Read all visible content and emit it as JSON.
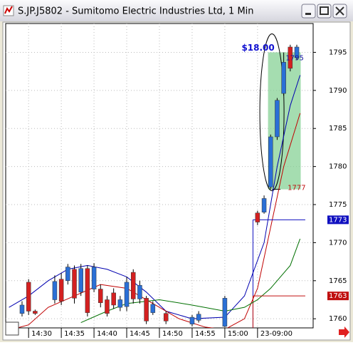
{
  "window": {
    "title": "S.JP.J5802 - Sumitomo Electric Industries Ltd, 1 Min"
  },
  "chart_data": {
    "type": "candlestick",
    "x": [
      -1,
      0,
      1,
      4,
      5,
      6,
      7,
      8,
      9,
      10,
      11,
      12,
      13,
      14,
      15,
      16,
      17,
      18,
      19,
      21,
      25,
      26,
      30,
      35,
      36,
      37,
      38,
      39,
      40,
      41
    ],
    "open": [
      1760.7,
      1764.8,
      1761,
      1762.5,
      1765.2,
      1765,
      1766.5,
      1763.5,
      1766.6,
      1763.9,
      1763.9,
      1762.5,
      1763.4,
      1761.5,
      1761.6,
      1766.1,
      1762.6,
      1762.7,
      1760.8,
      1760.7,
      1759.3,
      1759.8,
      1759,
      1773.9,
      1774,
      1777.3,
      1783.9,
      1789.6,
      1795.7,
      1794.3
    ],
    "high": [
      1762.3,
      1765.2,
      1761.2,
      1765.7,
      1766,
      1767.2,
      1767,
      1767.2,
      1767,
      1767.3,
      1764.5,
      1763,
      1764,
      1763,
      1765.5,
      1766.5,
      1765,
      1763,
      1762.3,
      1761,
      1760.5,
      1761,
      1763,
      1774.2,
      1776.2,
      1784.2,
      1789,
      1795,
      1796,
      1796
    ],
    "low": [
      1760.3,
      1760.5,
      1760.5,
      1762,
      1761.8,
      1764.5,
      1762,
      1763,
      1760.3,
      1763.5,
      1761.5,
      1760.3,
      1761.3,
      1761,
      1761,
      1762,
      1762,
      1759.3,
      1760.5,
      1759.3,
      1759,
      1759.5,
      1758.9,
      1772.3,
      1773.8,
      1777,
      1783.5,
      1789.3,
      1792.5,
      1794
    ],
    "close": [
      1761.8,
      1761,
      1760.7,
      1764.9,
      1762.3,
      1766.8,
      1762.7,
      1766.6,
      1760.8,
      1766.8,
      1762.1,
      1760.7,
      1761.8,
      1762.5,
      1764.8,
      1762.6,
      1764.4,
      1759.7,
      1761.9,
      1759.7,
      1760.2,
      1760.6,
      1762.7,
      1772.7,
      1775.8,
      1783.9,
      1788.7,
      1793.7,
      1792.9,
      1795.7
    ],
    "up_color": "#2a6fd6",
    "down_color": "#d42020",
    "lines": [
      {
        "color": "#0000b0",
        "x": [
          -3,
          0,
          3,
          6,
          9,
          12,
          15,
          18,
          21,
          25,
          30,
          33,
          36,
          38,
          40,
          41.5
        ],
        "values": [
          1761.5,
          1763,
          1765,
          1766.5,
          1767,
          1766.5,
          1765.5,
          1763.5,
          1761,
          1760,
          1760.2,
          1763,
          1770,
          1780,
          1788,
          1792
        ]
      },
      {
        "color": "#c00000",
        "x": [
          -3,
          0,
          3,
          7,
          11,
          15,
          19,
          23,
          27,
          30,
          33,
          35,
          37,
          39,
          41.5
        ],
        "values": [
          1758.5,
          1759.2,
          1761.5,
          1763,
          1764.5,
          1764,
          1762,
          1760,
          1758.9,
          1758.6,
          1760,
          1764,
          1772,
          1780,
          1787
        ]
      },
      {
        "color": "#007000",
        "x": [
          8,
          12,
          15,
          20,
          25,
          30,
          33,
          35,
          37,
          40,
          41.5
        ],
        "values": [
          1759.5,
          1761,
          1762,
          1762.5,
          1761.8,
          1761,
          1761.5,
          1762.5,
          1764,
          1767,
          1770.5
        ]
      }
    ],
    "xlim": [
      -3.5,
      43.5
    ],
    "xticks": [
      {
        "value": 0,
        "label": "14:30"
      },
      {
        "value": 5,
        "label": "14:35"
      },
      {
        "value": 10,
        "label": "14:40"
      },
      {
        "value": 15,
        "label": "14:45"
      },
      {
        "value": 20,
        "label": "14:50"
      },
      {
        "value": 25,
        "label": "14:55"
      },
      {
        "value": 30,
        "label": "15:00"
      },
      {
        "value": 35,
        "label": "23-09:00"
      }
    ],
    "ylim": [
      1758.8,
      1798.6
    ],
    "yticks": [
      1760,
      1765,
      1770,
      1775,
      1780,
      1785,
      1790,
      1795
    ],
    "grid": true,
    "price_markers": [
      {
        "value": 1773,
        "color": "#1010c0"
      },
      {
        "value": 1763,
        "color": "#c01010"
      }
    ],
    "range": {
      "high": 1795,
      "low": 1777,
      "change_label": "$18.00",
      "fill": "#7fcf8f"
    }
  }
}
